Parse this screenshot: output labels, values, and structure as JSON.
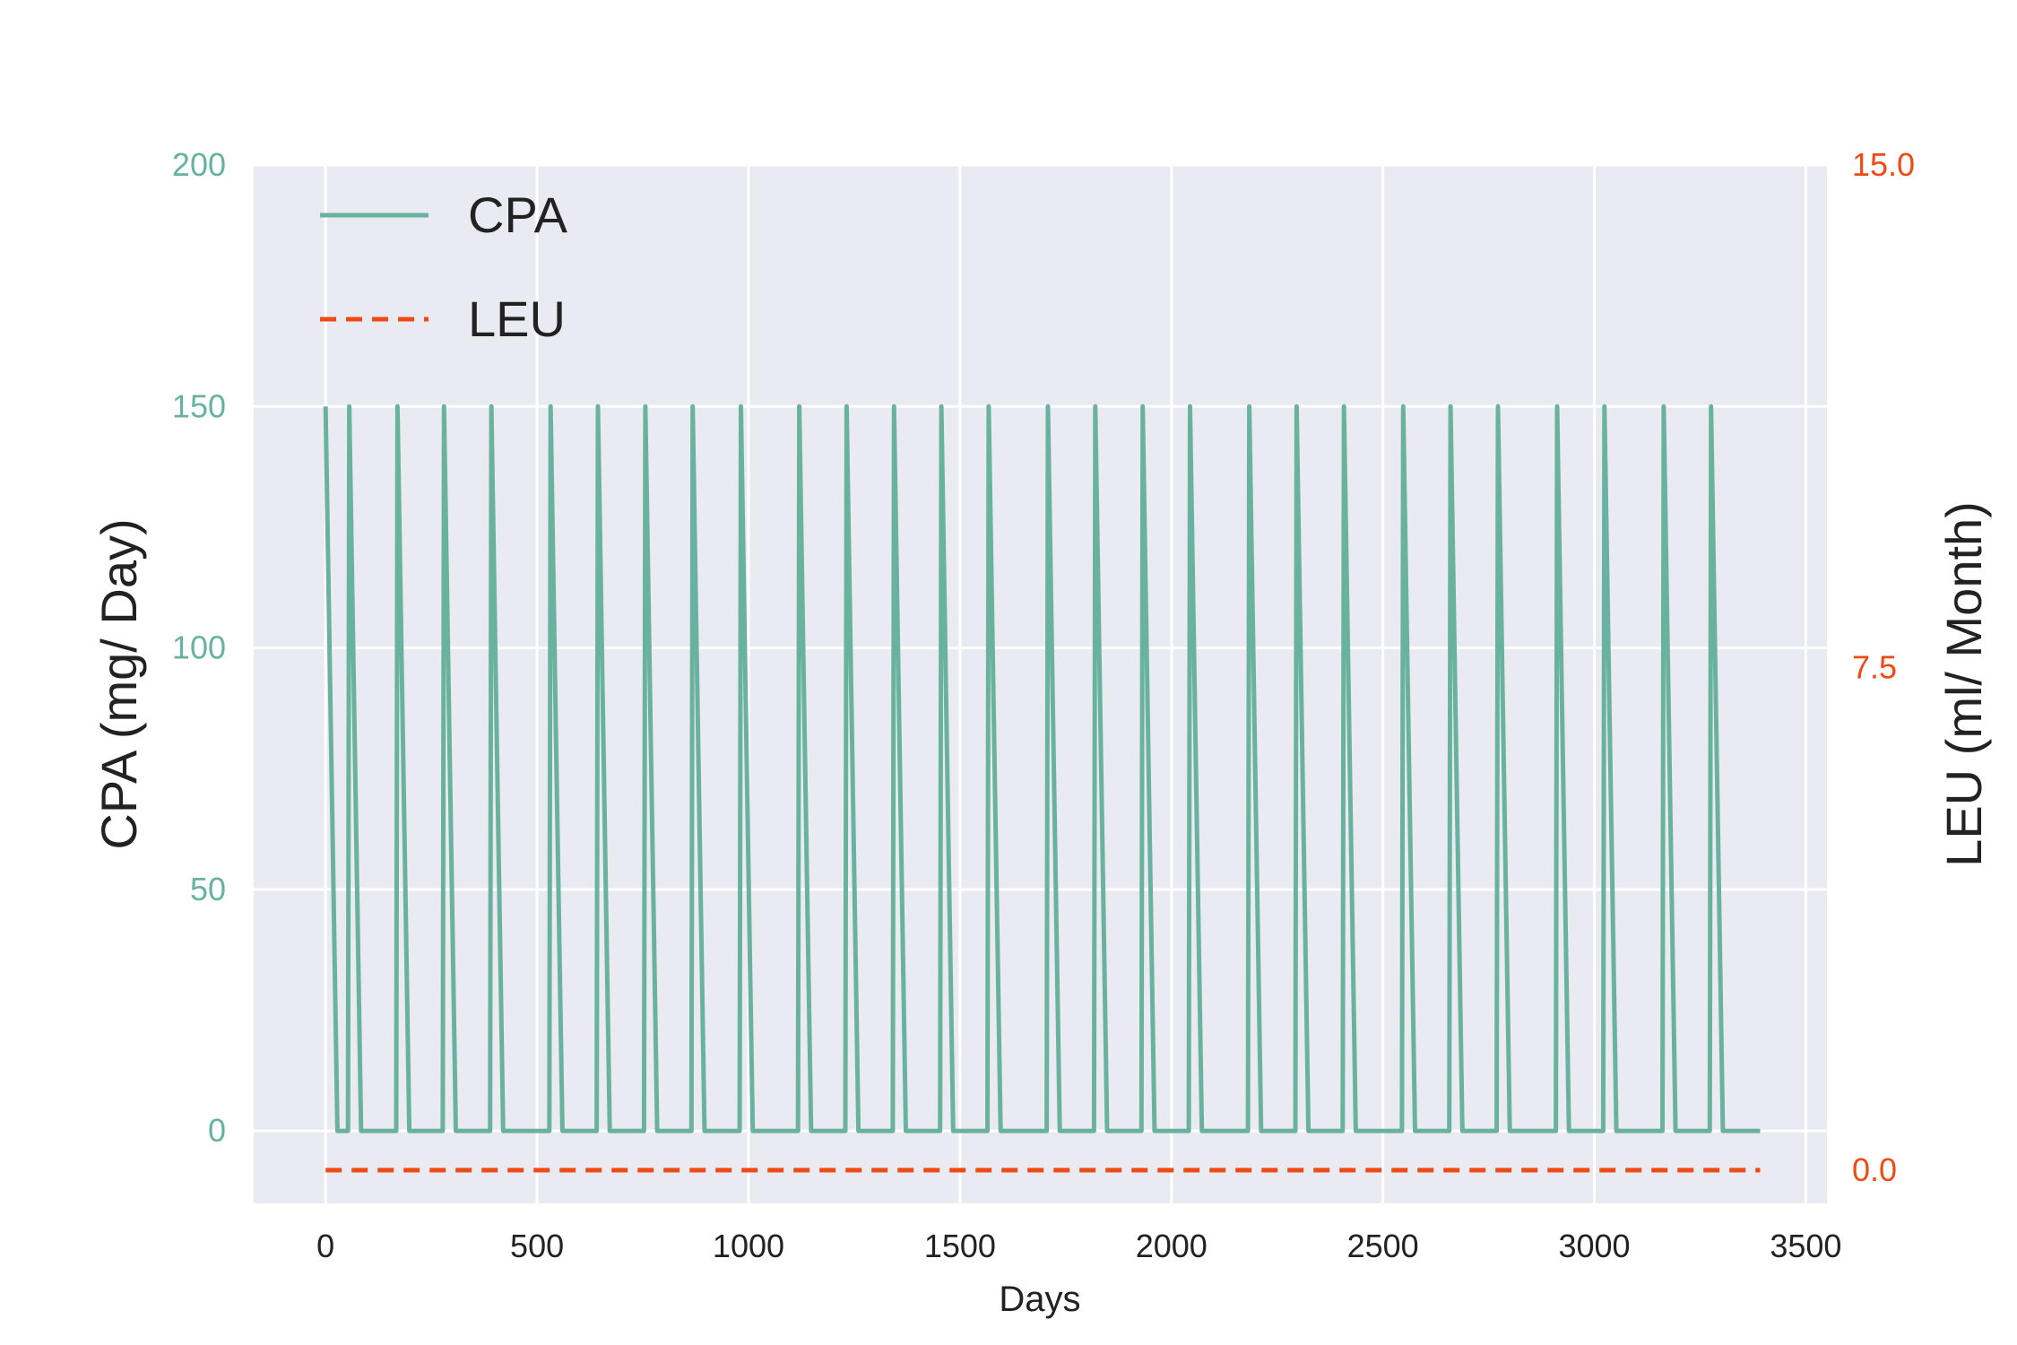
{
  "chart_data": {
    "type": "line",
    "xlabel": "Days",
    "ylabel_left": "CPA (mg/ Day)",
    "ylabel_right": "LEU (ml/ Month)",
    "xlim": [
      -170,
      3550
    ],
    "ylim_left": [
      -15,
      200
    ],
    "ylim_right": [
      0.0,
      15.0
    ],
    "x_ticks": [
      0,
      500,
      1000,
      1500,
      2000,
      2500,
      3000,
      3500
    ],
    "y_left_ticks": [
      0,
      50,
      100,
      150,
      200
    ],
    "y_right_ticks": [
      "0.0",
      "7.5",
      "15.0"
    ],
    "grid": true,
    "legend_position": "upper-left",
    "colors": {
      "CPA": "#6ab2a0",
      "LEU": "#f04a14",
      "plot_background": "#eaeaf2",
      "grid": "#ffffff",
      "left_ticks": "#6ab2a0",
      "right_ticks": "#f04a14"
    },
    "series": [
      {
        "name": "CPA",
        "axis": "left",
        "style": "solid",
        "x": [
          0,
          28,
          56,
          170,
          280,
          392,
          532,
          644,
          756,
          868,
          982,
          1120,
          1232,
          1344,
          1456,
          1568,
          1708,
          1820,
          1932,
          2044,
          2184,
          2296,
          2408,
          2548,
          2660,
          2772,
          2912,
          3024,
          3164,
          3276,
          3392
        ],
        "y": [
          150,
          0,
          150,
          150,
          150,
          150,
          150,
          150,
          150,
          150,
          150,
          150,
          150,
          150,
          150,
          150,
          150,
          150,
          150,
          150,
          150,
          150,
          150,
          150,
          150,
          150,
          150,
          150,
          150,
          150,
          0
        ],
        "pattern_note_pulse_halfwidth_days": 28
      },
      {
        "name": "LEU",
        "axis": "right",
        "style": "dashed",
        "x": [
          0,
          3392
        ],
        "y": [
          0.0,
          0.0
        ]
      }
    ]
  }
}
